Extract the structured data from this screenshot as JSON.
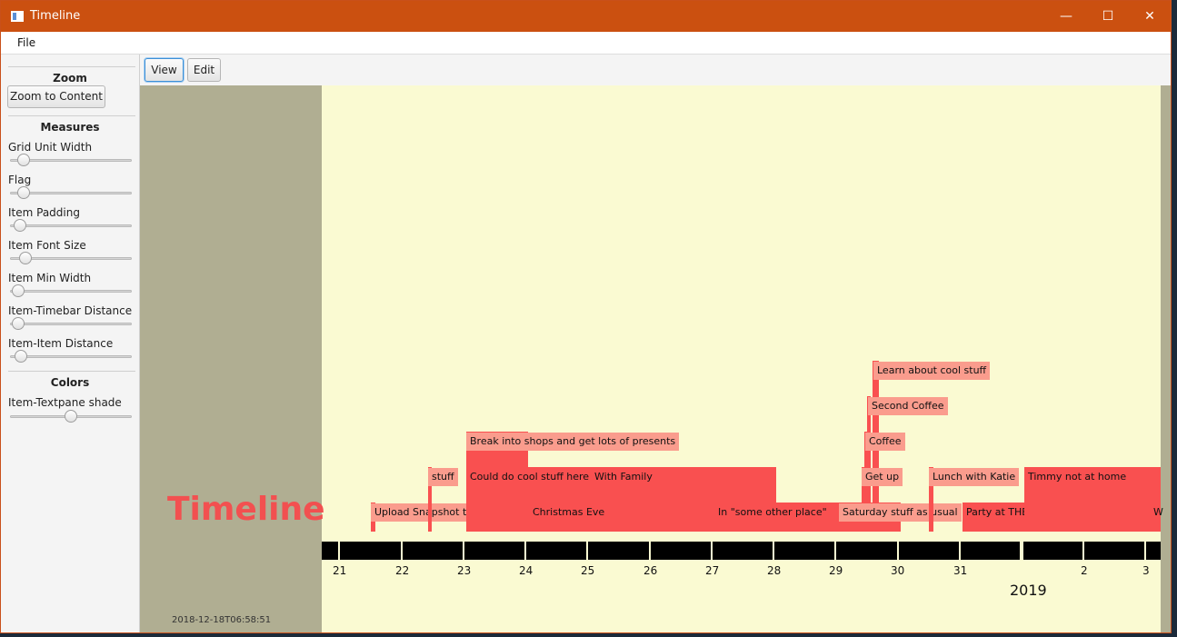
{
  "window": {
    "title": "Timeline",
    "minimize": "—",
    "maximize": "☐",
    "close": "✕"
  },
  "menu": {
    "file": "File"
  },
  "sidebar": {
    "zoom_header": "Zoom",
    "zoom_button": "Zoom to Content",
    "measures_header": "Measures",
    "sliders": [
      {
        "label": "Grid Unit Width",
        "value": 0.07
      },
      {
        "label": "Flag",
        "value": 0.07
      },
      {
        "label": "Item Padding",
        "value": 0.03
      },
      {
        "label": "Item Font Size",
        "value": 0.08
      },
      {
        "label": "Item Min Width",
        "value": 0.02
      },
      {
        "label": "Item-Timebar Distance",
        "value": 0.02
      },
      {
        "label": "Item-Item Distance",
        "value": 0.04
      }
    ],
    "colors_header": "Colors",
    "color_sliders": [
      {
        "label": "Item-Textpane shade",
        "value": 0.5
      }
    ]
  },
  "toolbar": {
    "view_label": "View",
    "edit_label": "Edit"
  },
  "timeline": {
    "title": "Timeline",
    "timestamp": "2018-12-18T06:58:51",
    "year_label": "2019",
    "day_labels": [
      "21",
      "22",
      "23",
      "24",
      "25",
      "26",
      "27",
      "28",
      "29",
      "30",
      "31",
      "2",
      "3"
    ],
    "items": [
      {
        "label": "Upload Snapshot to Github"
      },
      {
        "label": "stuff"
      },
      {
        "label": "Could do cool stuff here"
      },
      {
        "label": "Break into shops and get lots of presents"
      },
      {
        "label": "Christmas Eve"
      },
      {
        "label": "With Family"
      },
      {
        "label": "In \"some other place\""
      },
      {
        "label": "Saturday stuff as usual"
      },
      {
        "label": "Get up"
      },
      {
        "label": "Coffee"
      },
      {
        "label": "Second Coffee"
      },
      {
        "label": "Learn about cool stuff"
      },
      {
        "label": "Lunch with Katie"
      },
      {
        "label": "Party at THE PLACE"
      },
      {
        "label": "Timmy not at home"
      },
      {
        "label": "W"
      }
    ],
    "colors": {
      "item": "#f95050",
      "textpane": "#fa9c8d",
      "background": "#fafad2",
      "panel": "#b0ae92"
    }
  }
}
